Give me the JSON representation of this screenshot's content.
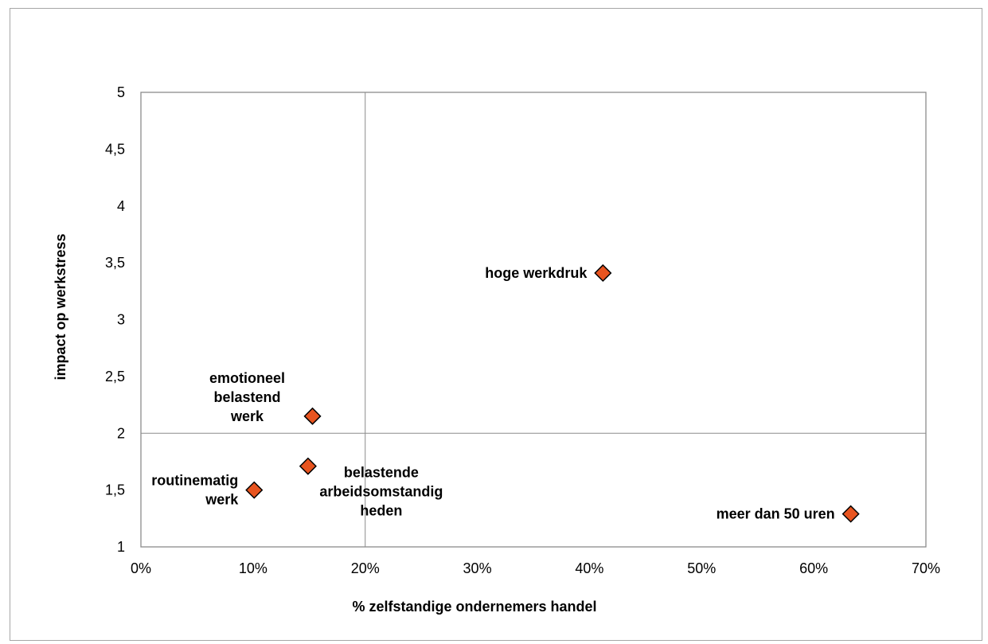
{
  "chart_data": {
    "type": "scatter",
    "xlabel": "% zelfstandige ondernemers handel",
    "ylabel": "impact op werkstress",
    "xlim": [
      0,
      0.7
    ],
    "ylim": [
      1,
      5
    ],
    "x_ticks": [
      {
        "value": 0.0,
        "label": "0%"
      },
      {
        "value": 0.1,
        "label": "10%"
      },
      {
        "value": 0.2,
        "label": "20%"
      },
      {
        "value": 0.3,
        "label": "30%"
      },
      {
        "value": 0.4,
        "label": "40%"
      },
      {
        "value": 0.5,
        "label": "50%"
      },
      {
        "value": 0.6,
        "label": "60%"
      },
      {
        "value": 0.7,
        "label": "70%"
      }
    ],
    "y_ticks": [
      {
        "value": 1,
        "label": "1"
      },
      {
        "value": 1.5,
        "label": "1,5"
      },
      {
        "value": 2,
        "label": "2"
      },
      {
        "value": 2.5,
        "label": "2,5"
      },
      {
        "value": 3,
        "label": "3"
      },
      {
        "value": 3.5,
        "label": "3,5"
      },
      {
        "value": 4,
        "label": "4"
      },
      {
        "value": 4.5,
        "label": "4,5"
      },
      {
        "value": 5,
        "label": "5"
      }
    ],
    "reference_lines": {
      "x": 0.2,
      "y": 2
    },
    "grid": false,
    "legend": "none",
    "marker": {
      "shape": "diamond",
      "fill": "#e8541f",
      "stroke": "#000000"
    },
    "points": [
      {
        "x": 0.412,
        "y": 3.41,
        "label": [
          "hoge werkdruk"
        ],
        "label_side": "left"
      },
      {
        "x": 0.153,
        "y": 2.15,
        "label": [
          "emotioneel",
          "belastend",
          "werk"
        ],
        "label_side": "above-left"
      },
      {
        "x": 0.149,
        "y": 1.71,
        "label": [
          "belastende",
          "arbeidsomstandig",
          "heden"
        ],
        "label_side": "below-right"
      },
      {
        "x": 0.101,
        "y": 1.5,
        "label": [
          "routinematig",
          "werk"
        ],
        "label_side": "left"
      },
      {
        "x": 0.633,
        "y": 1.29,
        "label": [
          "meer dan 50 uren"
        ],
        "label_side": "left"
      }
    ]
  }
}
